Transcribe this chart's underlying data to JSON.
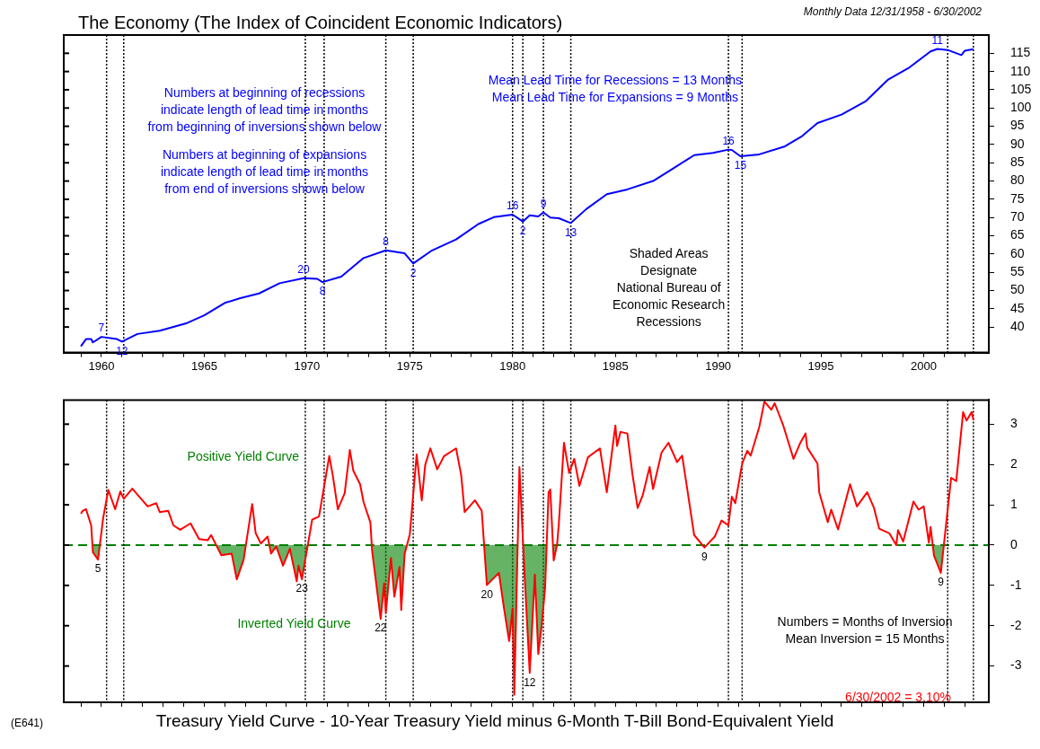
{
  "chart_data": [
    {
      "type": "line",
      "title": "The Economy (The Index of Coincident Economic Indicators)",
      "subtitle": "Monthly Data 12/31/1958 - 6/30/2002",
      "xlim": [
        "1958-03",
        "2003-03"
      ],
      "xticks": [
        {
          "value": "1959",
          "label": null
        },
        {
          "value": "1960",
          "label": "1960"
        },
        {
          "value": "1961",
          "label": null
        },
        {
          "value": "1962",
          "label": null
        },
        {
          "value": "1963",
          "label": null
        },
        {
          "value": "1964",
          "label": null
        },
        {
          "value": "1965",
          "label": "1965"
        },
        {
          "value": "1966",
          "label": null
        },
        {
          "value": "1967",
          "label": null
        },
        {
          "value": "1968",
          "label": null
        },
        {
          "value": "1969",
          "label": null
        },
        {
          "value": "1970",
          "label": "1970"
        },
        {
          "value": "1971",
          "label": null
        },
        {
          "value": "1972",
          "label": null
        },
        {
          "value": "1973",
          "label": null
        },
        {
          "value": "1974",
          "label": null
        },
        {
          "value": "1975",
          "label": "1975"
        },
        {
          "value": "1976",
          "label": null
        },
        {
          "value": "1977",
          "label": null
        },
        {
          "value": "1978",
          "label": null
        },
        {
          "value": "1979",
          "label": null
        },
        {
          "value": "1980",
          "label": "1980"
        },
        {
          "value": "1981",
          "label": null
        },
        {
          "value": "1982",
          "label": null
        },
        {
          "value": "1983",
          "label": null
        },
        {
          "value": "1984",
          "label": null
        },
        {
          "value": "1985",
          "label": "1985"
        },
        {
          "value": "1986",
          "label": null
        },
        {
          "value": "1987",
          "label": null
        },
        {
          "value": "1988",
          "label": null
        },
        {
          "value": "1989",
          "label": null
        },
        {
          "value": "1990",
          "label": "1990"
        },
        {
          "value": "1991",
          "label": null
        },
        {
          "value": "1992",
          "label": null
        },
        {
          "value": "1993",
          "label": null
        },
        {
          "value": "1994",
          "label": null
        },
        {
          "value": "1995",
          "label": "1995"
        },
        {
          "value": "1996",
          "label": null
        },
        {
          "value": "1997",
          "label": null
        },
        {
          "value": "1998",
          "label": null
        },
        {
          "value": "1999",
          "label": null
        },
        {
          "value": "2000",
          "label": "2000"
        },
        {
          "value": "2001",
          "label": null
        },
        {
          "value": "2002",
          "label": null
        }
      ],
      "ylim": [
        33,
        120
      ],
      "yticks": [
        40,
        45,
        50,
        55,
        60,
        65,
        70,
        75,
        80,
        85,
        90,
        95,
        100,
        105,
        110,
        115
      ],
      "series": [
        {
          "color": "#0000ff",
          "x": [
            "1959-01",
            "1959-04",
            "1959-07",
            "1959-08",
            "1960-01",
            "1960-10",
            "1961-01",
            "1961-10",
            "1962-11",
            "1964-03",
            "1965-01",
            "1966-01",
            "1966-10",
            "1967-09",
            "1968-09",
            "1969-11",
            "1970-07",
            "1970-10",
            "1971-09",
            "1972-10",
            "1973-11",
            "1974-10",
            "1975-03",
            "1976-02",
            "1977-04",
            "1978-05",
            "1979-02",
            "1980-01",
            "1980-07",
            "1980-11",
            "1981-04",
            "1981-07",
            "1981-11",
            "1982-04",
            "1982-11",
            "1983-08",
            "1984-08",
            "1985-08",
            "1986-11",
            "1988-01",
            "1988-11",
            "1989-10",
            "1990-07",
            "1990-09",
            "1991-02",
            "1992-01",
            "1993-04",
            "1994-02",
            "1994-11",
            "1996-01",
            "1997-03",
            "1998-04",
            "1999-04",
            "2000-05",
            "2000-09",
            "2001-03",
            "2001-11",
            "2002-01",
            "2002-06"
          ],
          "values": [
            34.7,
            36.7,
            36.7,
            35.8,
            37.3,
            36.7,
            36.0,
            38.1,
            39.0,
            41.1,
            43.2,
            46.6,
            47.9,
            49.2,
            52.0,
            53.4,
            53.2,
            52.3,
            53.8,
            58.9,
            61.0,
            60.2,
            57.4,
            61.0,
            64.0,
            68.2,
            70.1,
            70.8,
            68.9,
            70.6,
            70.3,
            71.4,
            70.0,
            69.8,
            68.5,
            72.3,
            76.4,
            77.7,
            80.0,
            84.1,
            87.1,
            87.7,
            88.6,
            88.5,
            86.8,
            87.3,
            89.5,
            92.3,
            95.9,
            98.2,
            101.8,
            107.7,
            110.9,
            115.5,
            116.2,
            115.9,
            114.5,
            115.7,
            116.1
          ]
        }
      ],
      "ref_lines": [
        {
          "axis": "x",
          "value": "1960-04",
          "color": "#000000",
          "line_style": "dotted"
        },
        {
          "axis": "x",
          "value": "1961-02",
          "color": "#000000",
          "line_style": "dotted"
        },
        {
          "axis": "x",
          "value": "1969-12",
          "color": "#000000",
          "line_style": "dotted"
        },
        {
          "axis": "x",
          "value": "1970-11",
          "color": "#000000",
          "line_style": "dotted"
        },
        {
          "axis": "x",
          "value": "1973-11",
          "color": "#000000",
          "line_style": "dotted"
        },
        {
          "axis": "x",
          "value": "1975-03",
          "color": "#000000",
          "line_style": "dotted"
        },
        {
          "axis": "x",
          "value": "1980-01",
          "color": "#000000",
          "line_style": "dotted"
        },
        {
          "axis": "x",
          "value": "1980-07",
          "color": "#000000",
          "line_style": "dotted"
        },
        {
          "axis": "x",
          "value": "1981-07",
          "color": "#000000",
          "line_style": "dotted"
        },
        {
          "axis": "x",
          "value": "1982-11",
          "color": "#000000",
          "line_style": "dotted"
        },
        {
          "axis": "x",
          "value": "1990-07",
          "color": "#000000",
          "line_style": "dotted"
        },
        {
          "axis": "x",
          "value": "1991-03",
          "color": "#000000",
          "line_style": "dotted"
        },
        {
          "axis": "x",
          "value": "2001-03",
          "color": "#000000",
          "line_style": "dotted"
        },
        {
          "axis": "x",
          "value": "2002-06",
          "color": "#000000",
          "line_style": "dotted"
        }
      ],
      "annotations": [
        "Numbers at beginning of recessions\nindicate length of lead time in months\nfrom beginning of inversions shown below",
        "Numbers at beginning of expansions\nindicate length of lead time in months\nfrom end of inversions shown below",
        "Mean Lead Time for Recessions = 13 Months\nMean Lead Time for Expansions = 9 Months",
        "Shaded Areas\nDesignate\nNational Bureau of\nEconomic Research\nRecessions",
        {
          "text": "7",
          "x": "1960-01",
          "y": 37.3
        },
        {
          "text": "12",
          "x": "1961-01",
          "y": 36.0
        },
        {
          "text": "20",
          "x": "1969-11",
          "y": 53.4
        },
        {
          "text": "8",
          "x": "1970-10",
          "y": 52.3
        },
        {
          "text": "8",
          "x": "1973-11",
          "y": 61.0
        },
        {
          "text": "2",
          "x": "1975-03",
          "y": 57.4
        },
        {
          "text": "16",
          "x": "1980-01",
          "y": 70.8
        },
        {
          "text": "2",
          "x": "1980-07",
          "y": 68.9
        },
        {
          "text": "9",
          "x": "1981-07",
          "y": 71.4
        },
        {
          "text": "13",
          "x": "1982-11",
          "y": 68.5
        },
        {
          "text": "16",
          "x": "1990-07",
          "y": 88.6
        },
        {
          "text": "15",
          "x": "1991-02",
          "y": 86.8
        },
        {
          "text": "11",
          "x": "2000-09",
          "y": 116.2
        }
      ]
    },
    {
      "type": "line",
      "title": "Treasury Yield Curve - 10-Year Treasury Yield minus 6-Month T-Bill Bond-Equivalent Yield",
      "tick_labels": "y",
      "xlim": [
        "1958-03",
        "2003-03"
      ],
      "xticks": [
        {
          "value": "1959",
          "label": null
        },
        {
          "value": "1960",
          "label": null
        },
        {
          "value": "1961",
          "label": null
        },
        {
          "value": "1962",
          "label": null
        },
        {
          "value": "1963",
          "label": null
        },
        {
          "value": "1964",
          "label": null
        },
        {
          "value": "1965",
          "label": null
        },
        {
          "value": "1966",
          "label": null
        },
        {
          "value": "1967",
          "label": null
        },
        {
          "value": "1968",
          "label": null
        },
        {
          "value": "1969",
          "label": null
        },
        {
          "value": "1970",
          "label": null
        },
        {
          "value": "1971",
          "label": null
        },
        {
          "value": "1972",
          "label": null
        },
        {
          "value": "1973",
          "label": null
        },
        {
          "value": "1974",
          "label": null
        },
        {
          "value": "1975",
          "label": null
        },
        {
          "value": "1976",
          "label": null
        },
        {
          "value": "1977",
          "label": null
        },
        {
          "value": "1978",
          "label": null
        },
        {
          "value": "1979",
          "label": null
        },
        {
          "value": "1980",
          "label": null
        },
        {
          "value": "1981",
          "label": null
        },
        {
          "value": "1982",
          "label": null
        },
        {
          "value": "1983",
          "label": null
        },
        {
          "value": "1984",
          "label": null
        },
        {
          "value": "1985",
          "label": null
        },
        {
          "value": "1986",
          "label": null
        },
        {
          "value": "1987",
          "label": null
        },
        {
          "value": "1988",
          "label": null
        },
        {
          "value": "1989",
          "label": null
        },
        {
          "value": "1990",
          "label": null
        },
        {
          "value": "1991",
          "label": null
        },
        {
          "value": "1992",
          "label": null
        },
        {
          "value": "1993",
          "label": null
        },
        {
          "value": "1994",
          "label": null
        },
        {
          "value": "1995",
          "label": null
        },
        {
          "value": "1996",
          "label": null
        },
        {
          "value": "1997",
          "label": null
        },
        {
          "value": "1998",
          "label": null
        },
        {
          "value": "1999",
          "label": null
        },
        {
          "value": "2000",
          "label": null
        },
        {
          "value": "2001",
          "label": null
        },
        {
          "value": "2002",
          "label": null
        }
      ],
      "ylim": [
        -3.9,
        3.6
      ],
      "yticks": [
        -3,
        -2,
        -1,
        0,
        1,
        2,
        3
      ],
      "series": [
        {
          "color": "#ff0000",
          "x": [
            "1959-01",
            "1959-02",
            "1959-04",
            "1959-07",
            "1959-08",
            "1959-11",
            "1960-02",
            "1960-05",
            "1960-09",
            "1960-12",
            "1961-02",
            "1961-07",
            "1962-04",
            "1962-09",
            "1962-11",
            "1963-04",
            "1963-07",
            "1963-11",
            "1964-05",
            "1964-10",
            "1965-03",
            "1965-05",
            "1965-11",
            "1966-05",
            "1966-08",
            "1966-12",
            "1967-05",
            "1967-07",
            "1967-10",
            "1968-02",
            "1968-04",
            "1968-07",
            "1968-11",
            "1969-03",
            "1969-07",
            "1969-08",
            "1969-10",
            "1970-04",
            "1970-08",
            "1971-02",
            "1971-04",
            "1971-07",
            "1971-11",
            "1972-02",
            "1972-04",
            "1972-08",
            "1972-10",
            "1973-02",
            "1973-03",
            "1973-08",
            "1973-10",
            "1973-11",
            "1974-02",
            "1974-04",
            "1974-07",
            "1974-08",
            "1974-10",
            "1975-01",
            "1975-05",
            "1975-08",
            "1975-10",
            "1976-01",
            "1976-05",
            "1976-09",
            "1977-04",
            "1977-07",
            "1977-09",
            "1978-03",
            "1978-07",
            "1978-10",
            "1979-05",
            "1979-08",
            "1979-11",
            "1980-01",
            "1980-02",
            "1980-05",
            "1980-08",
            "1980-11",
            "1981-02",
            "1981-04",
            "1981-06",
            "1981-08",
            "1981-10",
            "1981-11",
            "1982-01",
            "1982-03",
            "1982-04",
            "1982-07",
            "1982-10",
            "1983-01",
            "1983-04",
            "1983-09",
            "1984-04",
            "1984-08",
            "1985-01",
            "1985-02",
            "1985-04",
            "1985-08",
            "1985-11",
            "1986-02",
            "1986-05",
            "1986-09",
            "1986-11",
            "1987-04",
            "1987-08",
            "1988-01",
            "1988-04",
            "1988-11",
            "1989-05",
            "1989-11",
            "1990-03",
            "1990-07",
            "1990-09",
            "1990-11",
            "1991-03",
            "1991-06",
            "1991-08",
            "1992-01",
            "1992-04",
            "1992-08",
            "1992-10",
            "1993-03",
            "1993-09",
            "1994-01",
            "1994-04",
            "1994-05",
            "1994-11",
            "1994-12",
            "1995-05",
            "1995-07",
            "1995-11",
            "1996-06",
            "1996-10",
            "1997-04",
            "1997-08",
            "1997-11",
            "1998-05",
            "1998-09",
            "1998-10",
            "1999-01",
            "1999-07",
            "1999-10",
            "2000-01",
            "2000-04",
            "2000-05",
            "2000-07",
            "2000-11",
            "2001-05",
            "2001-08",
            "2001-12",
            "2002-02",
            "2002-05",
            "2002-06"
          ],
          "values": [
            0.78,
            0.85,
            0.89,
            0.49,
            -0.18,
            -0.36,
            0.67,
            1.37,
            0.89,
            1.33,
            1.15,
            1.4,
            0.96,
            1.04,
            0.82,
            0.85,
            0.49,
            0.38,
            0.54,
            0.15,
            0.12,
            0.25,
            -0.25,
            -0.21,
            -0.85,
            -0.36,
            1.02,
            0.3,
            0.04,
            0.21,
            -0.21,
            -0.03,
            -0.51,
            -0.09,
            -0.9,
            -0.51,
            -0.85,
            0.63,
            0.71,
            2.21,
            1.74,
            0.89,
            1.29,
            2.36,
            1.85,
            1.51,
            1.07,
            0.56,
            -0.14,
            -1.83,
            -0.95,
            -1.68,
            -0.32,
            -1.28,
            -0.54,
            -1.61,
            -0.21,
            0.26,
            2.25,
            1.11,
            1.99,
            2.4,
            1.88,
            2.21,
            2.4,
            1.74,
            0.82,
            1.11,
            0.85,
            -0.99,
            -0.69,
            -1.57,
            -2.38,
            -1.57,
            -3.71,
            1.94,
            -0.73,
            -3.17,
            -0.73,
            -2.7,
            -1.99,
            -1.05,
            1.31,
            1.38,
            -0.38,
            0.02,
            0.53,
            2.54,
            1.79,
            2.14,
            1.47,
            2.18,
            2.4,
            1.31,
            2.97,
            2.46,
            2.81,
            2.77,
            1.75,
            0.92,
            1.24,
            1.94,
            1.39,
            2.3,
            2.54,
            2.06,
            2.22,
            0.25,
            -0.06,
            0.21,
            0.61,
            0.49,
            1.2,
            1.04,
            2.02,
            2.34,
            2.22,
            2.93,
            3.56,
            3.36,
            3.52,
            2.97,
            2.14,
            2.54,
            2.77,
            2.42,
            2.02,
            1.31,
            0.57,
            0.88,
            0.39,
            1.51,
            0.96,
            1.31,
            0.92,
            0.41,
            0.29,
            0.0,
            0.37,
            0.09,
            1.08,
            0.88,
            0.96,
            0.06,
            0.45,
            -0.26,
            -0.69,
            1.67,
            1.59,
            3.3,
            3.09,
            3.3,
            3.1
          ]
        }
      ],
      "ref_lines": [
        {
          "axis": "y",
          "value": 0,
          "color": "#008000",
          "line_style": "dashed"
        },
        {
          "axis": "x",
          "value": "1960-04",
          "color": "#000000",
          "line_style": "dotted"
        },
        {
          "axis": "x",
          "value": "1961-02",
          "color": "#000000",
          "line_style": "dotted"
        },
        {
          "axis": "x",
          "value": "1969-12",
          "color": "#000000",
          "line_style": "dotted"
        },
        {
          "axis": "x",
          "value": "1970-11",
          "color": "#000000",
          "line_style": "dotted"
        },
        {
          "axis": "x",
          "value": "1973-11",
          "color": "#000000",
          "line_style": "dotted"
        },
        {
          "axis": "x",
          "value": "1975-03",
          "color": "#000000",
          "line_style": "dotted"
        },
        {
          "axis": "x",
          "value": "1980-01",
          "color": "#000000",
          "line_style": "dotted"
        },
        {
          "axis": "x",
          "value": "1980-07",
          "color": "#000000",
          "line_style": "dotted"
        },
        {
          "axis": "x",
          "value": "1981-07",
          "color": "#000000",
          "line_style": "dotted"
        },
        {
          "axis": "x",
          "value": "1982-11",
          "color": "#000000",
          "line_style": "dotted"
        },
        {
          "axis": "x",
          "value": "1990-07",
          "color": "#000000",
          "line_style": "dotted"
        },
        {
          "axis": "x",
          "value": "1991-03",
          "color": "#000000",
          "line_style": "dotted"
        },
        {
          "axis": "x",
          "value": "2001-03",
          "color": "#000000",
          "line_style": "dotted"
        },
        {
          "axis": "x",
          "value": "2002-06",
          "color": "#000000",
          "line_style": "dotted"
        }
      ],
      "annotations": [
        "Positive Yield Curve",
        "Inverted Yield Curve",
        "Numbers = Months of Inversion\nMean Inversion = 15 Months",
        "6/30/2002 = 3.10%",
        "(E641)",
        {
          "text": "5",
          "x": "1959-11",
          "y": -0.36
        },
        {
          "text": "23",
          "x": "1969-10",
          "y": -0.85
        },
        {
          "text": "22",
          "x": "1973-08",
          "y": -1.83
        },
        {
          "text": "20",
          "x": "1978-10",
          "y": -0.99
        },
        {
          "text": "12",
          "x": "1980-11",
          "y": -3.17
        },
        {
          "text": "9",
          "x": "1989-05",
          "y": -0.06
        },
        {
          "text": "9",
          "x": "2000-11",
          "y": -0.69
        }
      ]
    }
  ]
}
